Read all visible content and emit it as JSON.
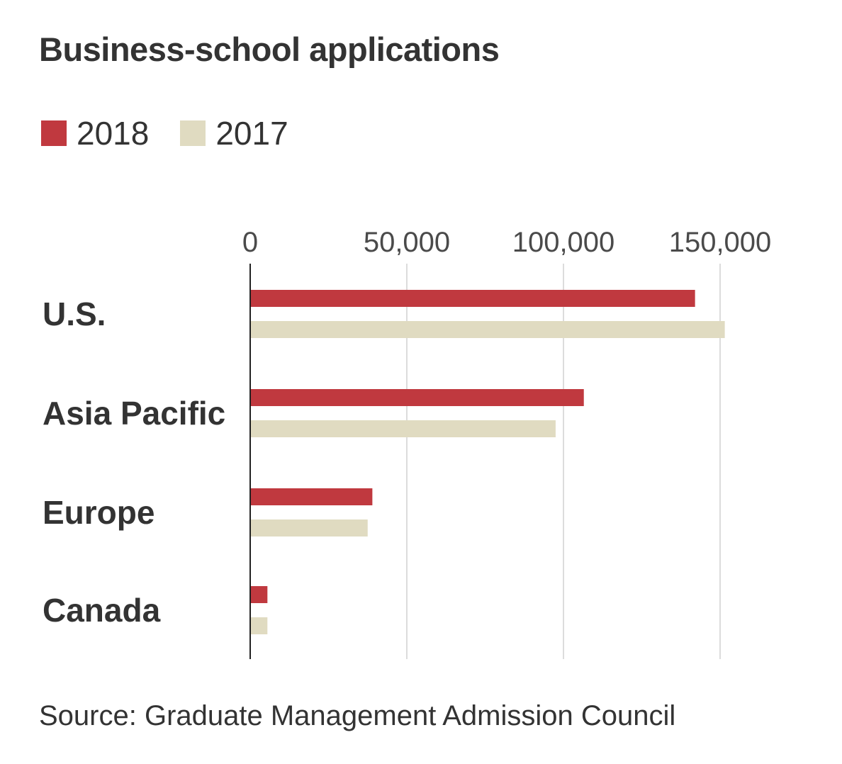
{
  "chart_data": {
    "type": "bar",
    "orientation": "horizontal",
    "title": "Business-school applications",
    "categories": [
      "U.S.",
      "Asia Pacific",
      "Europe",
      "Canada"
    ],
    "series": [
      {
        "name": "2018",
        "color": "#c0393f",
        "values": [
          142000,
          106500,
          39000,
          5500
        ]
      },
      {
        "name": "2017",
        "color": "#e0dbc1",
        "values": [
          151500,
          97500,
          37500,
          5500
        ]
      }
    ],
    "x_ticks": [
      {
        "value": 0,
        "label": "0"
      },
      {
        "value": 50000,
        "label": "50,000"
      },
      {
        "value": 100000,
        "label": "100,000"
      },
      {
        "value": 150000,
        "label": "150,000"
      }
    ],
    "xlim": [
      0,
      160000
    ],
    "grid": true,
    "legend_position": "top-left",
    "source": "Source: Graduate Management Admission Council"
  }
}
